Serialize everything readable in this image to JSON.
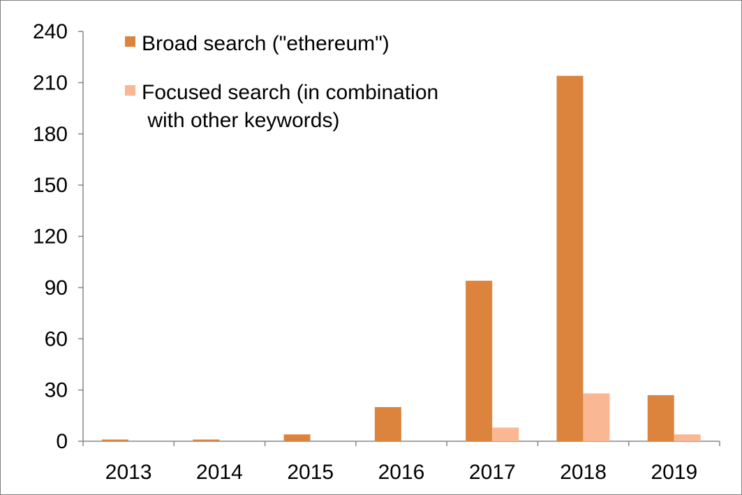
{
  "chart_data": {
    "type": "bar",
    "title": "",
    "xlabel": "",
    "ylabel": "",
    "categories": [
      "2013",
      "2014",
      "2015",
      "2016",
      "2017",
      "2018",
      "2019"
    ],
    "series": [
      {
        "name": "Broad search (\"ethereum\")",
        "color": "#dc843e",
        "values": [
          1,
          1,
          4,
          20,
          94,
          214,
          27
        ]
      },
      {
        "name": "Focused search (in combination\n with other keywords)",
        "color": "#f9b793",
        "values": [
          0,
          0,
          0,
          0,
          8,
          28,
          4
        ]
      }
    ],
    "ylim": [
      0,
      240
    ],
    "yticks": [
      "0",
      "30",
      "60",
      "90",
      "120",
      "150",
      "180",
      "210",
      "240"
    ],
    "grid": false,
    "legend_position": "top-left"
  }
}
